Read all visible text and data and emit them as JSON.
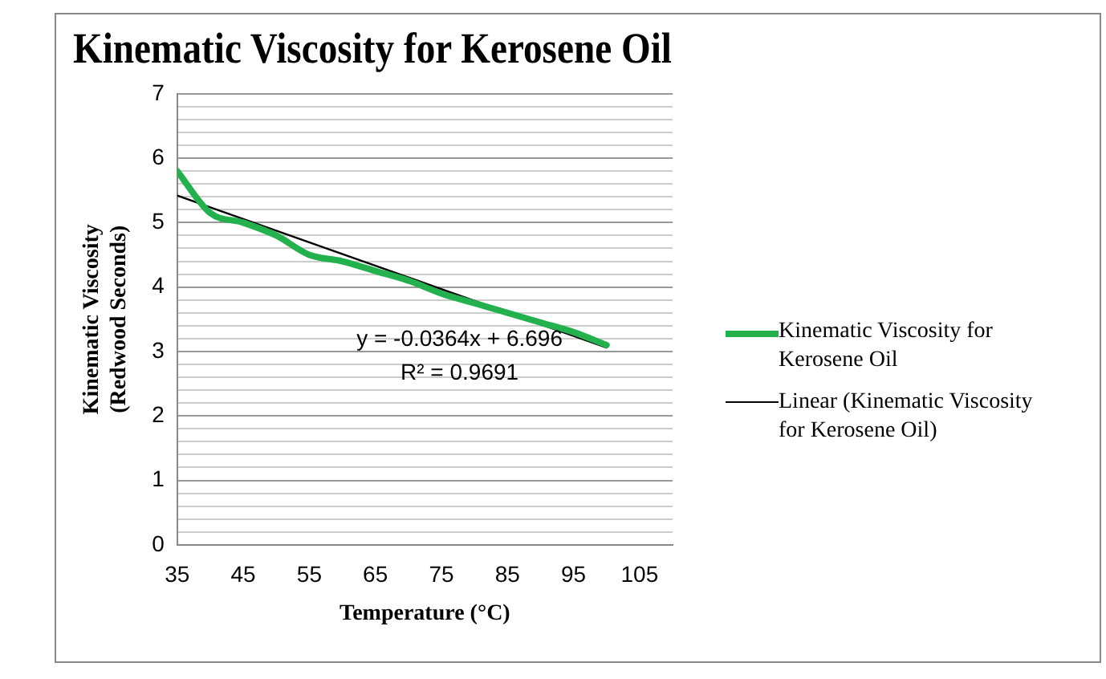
{
  "chart_data": {
    "type": "line",
    "title": "Kinematic Viscosity for Kerosene Oil",
    "xlabel": "Temperature (°C)",
    "ylabel": "Kinematic Viscosity (Redwood Seconds)",
    "x": [
      35,
      40,
      45,
      50,
      55,
      60,
      65,
      70,
      75,
      80,
      85,
      90,
      95,
      100
    ],
    "series": [
      {
        "name": "Kinematic Viscosity for Kerosene Oil",
        "color": "#22b14c",
        "values": [
          5.8,
          5.15,
          5.0,
          4.8,
          4.5,
          4.4,
          4.25,
          4.1,
          3.9,
          3.75,
          3.6,
          3.45,
          3.3,
          3.1
        ]
      },
      {
        "name": "Linear (Kinematic Viscosity for Kerosene Oil)",
        "color": "#000000",
        "x": [
          35,
          100
        ],
        "values": [
          5.42,
          3.06
        ]
      }
    ],
    "xlim": [
      35,
      110
    ],
    "xticks": [
      35,
      45,
      55,
      65,
      75,
      85,
      95,
      105
    ],
    "ylim": [
      0,
      7
    ],
    "yticks": [
      0,
      {
        "value": 0.2,
        "label": null
      },
      {
        "value": 0.4,
        "label": null
      },
      {
        "value": 0.6,
        "label": null
      },
      {
        "value": 0.8,
        "label": null
      },
      1,
      {
        "value": 1.2,
        "label": null
      },
      {
        "value": 1.4,
        "label": null
      },
      {
        "value": 1.6,
        "label": null
      },
      {
        "value": 1.8,
        "label": null
      },
      2,
      {
        "value": 2.2,
        "label": null
      },
      {
        "value": 2.4,
        "label": null
      },
      {
        "value": 2.6,
        "label": null
      },
      {
        "value": 2.8,
        "label": null
      },
      3,
      {
        "value": 3.2,
        "label": null
      },
      {
        "value": 3.4,
        "label": null
      },
      {
        "value": 3.6,
        "label": null
      },
      {
        "value": 3.8,
        "label": null
      },
      4,
      {
        "value": 4.2,
        "label": null
      },
      {
        "value": 4.4,
        "label": null
      },
      {
        "value": 4.6,
        "label": null
      },
      {
        "value": 4.8,
        "label": null
      },
      5,
      {
        "value": 5.2,
        "label": null
      },
      {
        "value": 5.4,
        "label": null
      },
      {
        "value": 5.6,
        "label": null
      },
      {
        "value": 5.8,
        "label": null
      },
      6,
      {
        "value": 6.2,
        "label": null
      },
      {
        "value": 6.4,
        "label": null
      },
      {
        "value": 6.6,
        "label": null
      },
      {
        "value": 6.8,
        "label": null
      },
      7
    ],
    "annotations": [
      "y = -0.0364x + 6.696",
      "R² = 0.9691"
    ],
    "grid": "y",
    "legend": "right",
    "marker": "none",
    "line_style": "solid"
  }
}
